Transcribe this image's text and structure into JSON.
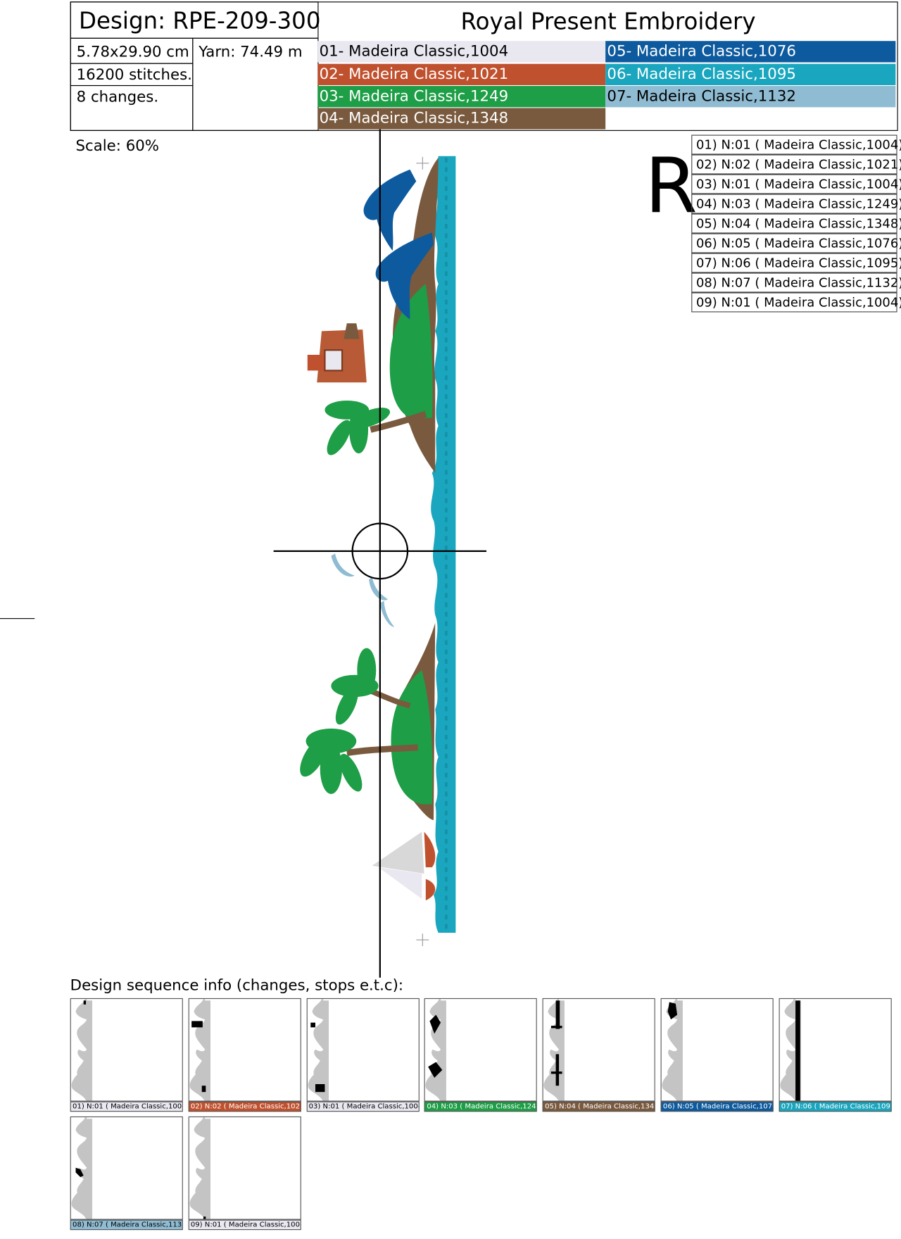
{
  "header": {
    "design": "Design: RPE-209-300",
    "title": "Royal Present Embroidery",
    "size": "5.78x29.90 cm",
    "yarn": "Yarn: 74.49 m",
    "stitches": "16200 stitches.",
    "changes": "8 changes."
  },
  "colors": [
    {
      "label": "01- Madeira Classic,1004",
      "color": "#e9e7f0",
      "text": "#000000"
    },
    {
      "label": "02- Madeira Classic,1021",
      "color": "#c0512e",
      "text": "#ffffff"
    },
    {
      "label": "03- Madeira Classic,1249",
      "color": "#1e9e46",
      "text": "#ffffff"
    },
    {
      "label": "04- Madeira Classic,1348",
      "color": "#7a5a3e",
      "text": "#ffffff"
    },
    {
      "label": "05- Madeira Classic,1076",
      "color": "#0d5a9e",
      "text": "#ffffff"
    },
    {
      "label": "06- Madeira Classic,1095",
      "color": "#1aa6be",
      "text": "#ffffff"
    },
    {
      "label": "07- Madeira Classic,1132",
      "color": "#8fbcd2",
      "text": "#000000"
    }
  ],
  "scale": "Scale: 60%",
  "letter": "R",
  "sequence": [
    {
      "label": "01) N:01 ( Madeira Classic,1004)",
      "color": "#e9e7f0",
      "text": "#000000"
    },
    {
      "label": "02) N:02 ( Madeira Classic,1021)",
      "color": "#c0512e",
      "text": "#ffffff"
    },
    {
      "label": "03) N:01 ( Madeira Classic,1004)",
      "color": "#e9e7f0",
      "text": "#000000"
    },
    {
      "label": "04) N:03 ( Madeira Classic,1249)",
      "color": "#1e9e46",
      "text": "#ffffff"
    },
    {
      "label": "05) N:04 ( Madeira Classic,1348)",
      "color": "#7a5a3e",
      "text": "#ffffff"
    },
    {
      "label": "06) N:05 ( Madeira Classic,1076)",
      "color": "#0d5a9e",
      "text": "#ffffff"
    },
    {
      "label": "07) N:06 ( Madeira Classic,1095)",
      "color": "#1aa6be",
      "text": "#ffffff"
    },
    {
      "label": "08) N:07 ( Madeira Classic,1132)",
      "color": "#8fbcd2",
      "text": "#000000"
    },
    {
      "label": "09) N:01 ( Madeira Classic,1004)",
      "color": "#e9e7f0",
      "text": "#000000"
    }
  ],
  "sequence_title": "Design sequence info (changes, stops e.t.c):"
}
